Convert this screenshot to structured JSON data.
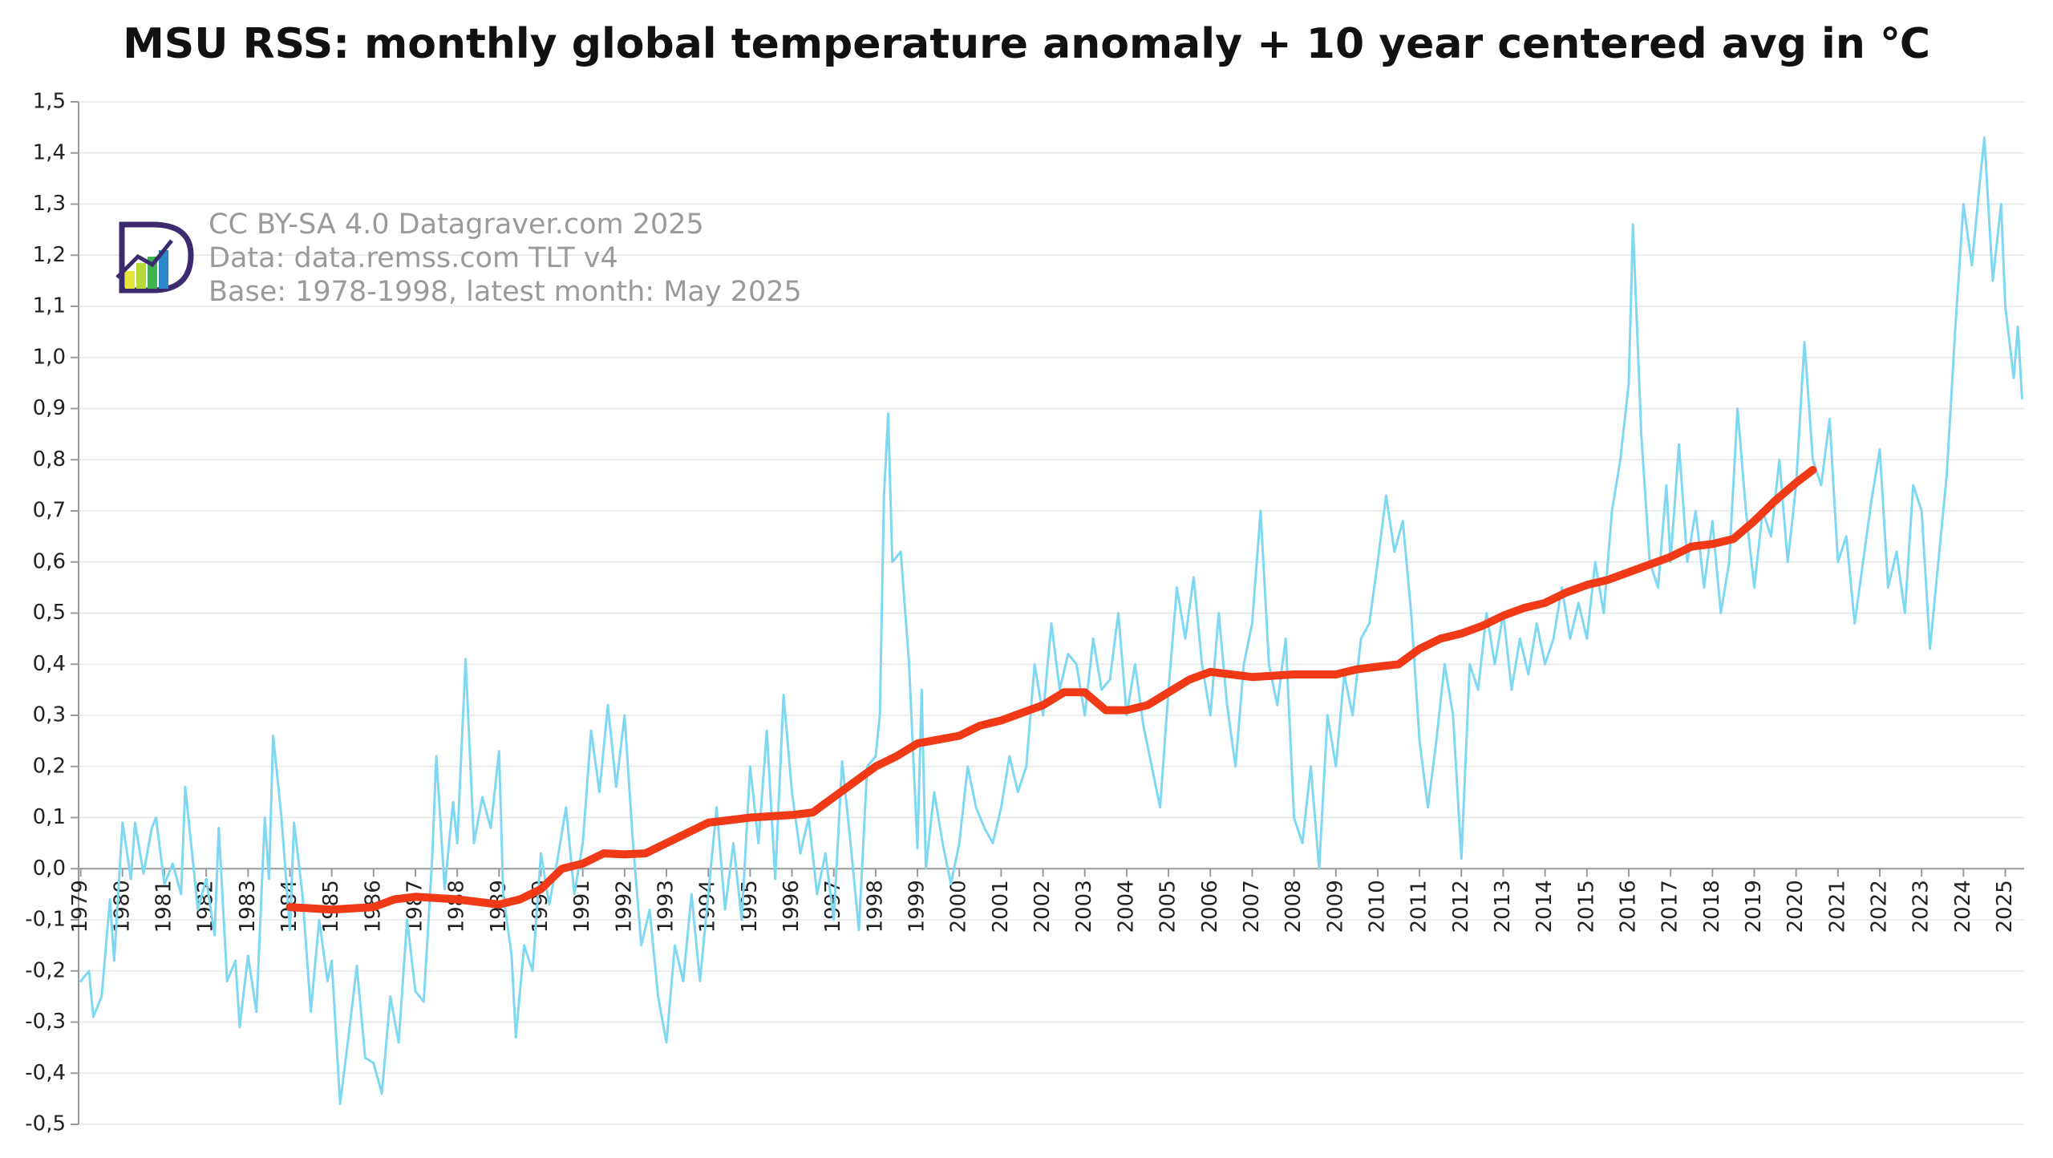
{
  "chart_data": {
    "type": "line",
    "title": "MSU RSS: monthly global temperature anomaly + 10 year centered avg in ℃",
    "annotations": [
      "CC BY-SA 4.0 Datagraver.com 2025",
      "Data: data.remss.com TLT v4",
      "Base: 1978-1998, latest month: May 2025"
    ],
    "xlim": [
      1978.95,
      2025.45
    ],
    "xticks": [
      1979,
      1980,
      1981,
      1982,
      1983,
      1984,
      1985,
      1986,
      1987,
      1988,
      1989,
      1990,
      1991,
      1992,
      1993,
      1994,
      1995,
      1996,
      1997,
      1998,
      1999,
      2000,
      2001,
      2002,
      2003,
      2004,
      2005,
      2006,
      2007,
      2008,
      2009,
      2010,
      2011,
      2012,
      2013,
      2014,
      2015,
      2016,
      2017,
      2018,
      2019,
      2020,
      2021,
      2022,
      2023,
      2024,
      2025
    ],
    "ylim": [
      -0.5,
      1.5
    ],
    "yticks": [
      {
        "value": -0.5,
        "label": "-0,5"
      },
      {
        "value": -0.4,
        "label": "-0,4"
      },
      {
        "value": -0.3,
        "label": "-0,3"
      },
      {
        "value": -0.2,
        "label": "-0,2"
      },
      {
        "value": -0.1,
        "label": "-0,1"
      },
      {
        "value": 0,
        "label": "0,0"
      },
      {
        "value": 0.1,
        "label": "0,1"
      },
      {
        "value": 0.2,
        "label": "0,2"
      },
      {
        "value": 0.3,
        "label": "0,3"
      },
      {
        "value": 0.4,
        "label": "0,4"
      },
      {
        "value": 0.5,
        "label": "0,5"
      },
      {
        "value": 0.6,
        "label": "0,6"
      },
      {
        "value": 0.7,
        "label": "0,7"
      },
      {
        "value": 0.8,
        "label": "0,8"
      },
      {
        "value": 0.9,
        "label": "0,9"
      },
      {
        "value": 1.0,
        "label": "1,0"
      },
      {
        "value": 1.1,
        "label": "1,1"
      },
      {
        "value": 1.2,
        "label": "1,2"
      },
      {
        "value": 1.3,
        "label": "1,3"
      },
      {
        "value": 1.4,
        "label": "1,4"
      },
      {
        "value": 1.5,
        "label": "1,5"
      }
    ],
    "grid": true,
    "series": [
      {
        "color": "#7fd8f2",
        "width": 3,
        "x": [
          1979.0,
          1979.2,
          1979.3,
          1979.5,
          1979.7,
          1979.8,
          1980.0,
          1980.2,
          1980.3,
          1980.5,
          1980.7,
          1980.8,
          1981.0,
          1981.2,
          1981.4,
          1981.5,
          1981.7,
          1981.8,
          1982.0,
          1982.2,
          1982.3,
          1982.5,
          1982.7,
          1982.8,
          1983.0,
          1983.2,
          1983.4,
          1983.5,
          1983.6,
          1983.8,
          1984.0,
          1984.1,
          1984.3,
          1984.5,
          1984.7,
          1984.9,
          1985.0,
          1985.2,
          1985.4,
          1985.6,
          1985.8,
          1986.0,
          1986.2,
          1986.4,
          1986.6,
          1986.8,
          1987.0,
          1987.2,
          1987.4,
          1987.5,
          1987.7,
          1987.9,
          1988.0,
          1988.2,
          1988.4,
          1988.6,
          1988.8,
          1989.0,
          1989.1,
          1989.3,
          1989.4,
          1989.6,
          1989.8,
          1990.0,
          1990.2,
          1990.4,
          1990.6,
          1990.8,
          1991.0,
          1991.2,
          1991.4,
          1991.6,
          1991.8,
          1992.0,
          1992.2,
          1992.4,
          1992.6,
          1992.8,
          1993.0,
          1993.2,
          1993.4,
          1993.6,
          1993.8,
          1994.0,
          1994.2,
          1994.4,
          1994.6,
          1994.8,
          1995.0,
          1995.2,
          1995.4,
          1995.6,
          1995.8,
          1996.0,
          1996.2,
          1996.4,
          1996.6,
          1996.8,
          1997.0,
          1997.2,
          1997.4,
          1997.6,
          1997.8,
          1998.0,
          1998.1,
          1998.2,
          1998.3,
          1998.4,
          1998.6,
          1998.8,
          1999.0,
          1999.1,
          1999.2,
          1999.4,
          1999.6,
          1999.8,
          2000.0,
          2000.2,
          2000.4,
          2000.6,
          2000.8,
          2001.0,
          2001.2,
          2001.4,
          2001.6,
          2001.8,
          2002.0,
          2002.2,
          2002.4,
          2002.6,
          2002.8,
          2003.0,
          2003.2,
          2003.4,
          2003.6,
          2003.8,
          2004.0,
          2004.2,
          2004.4,
          2004.6,
          2004.8,
          2005.0,
          2005.2,
          2005.4,
          2005.6,
          2005.8,
          2006.0,
          2006.2,
          2006.4,
          2006.6,
          2006.8,
          2007.0,
          2007.2,
          2007.4,
          2007.6,
          2007.8,
          2008.0,
          2008.2,
          2008.4,
          2008.6,
          2008.8,
          2009.0,
          2009.2,
          2009.4,
          2009.6,
          2009.8,
          2010.0,
          2010.2,
          2010.4,
          2010.6,
          2010.8,
          2011.0,
          2011.2,
          2011.4,
          2011.6,
          2011.8,
          2012.0,
          2012.2,
          2012.4,
          2012.6,
          2012.8,
          2013.0,
          2013.2,
          2013.4,
          2013.6,
          2013.8,
          2014.0,
          2014.2,
          2014.4,
          2014.6,
          2014.8,
          2015.0,
          2015.2,
          2015.4,
          2015.6,
          2015.8,
          2016.0,
          2016.1,
          2016.3,
          2016.5,
          2016.7,
          2016.9,
          2017.0,
          2017.2,
          2017.4,
          2017.6,
          2017.8,
          2018.0,
          2018.2,
          2018.4,
          2018.6,
          2018.8,
          2019.0,
          2019.2,
          2019.4,
          2019.6,
          2019.8,
          2020.0,
          2020.2,
          2020.4,
          2020.6,
          2020.8,
          2021.0,
          2021.2,
          2021.4,
          2021.6,
          2021.8,
          2022.0,
          2022.2,
          2022.4,
          2022.6,
          2022.8,
          2023.0,
          2023.2,
          2023.4,
          2023.6,
          2023.8,
          2024.0,
          2024.2,
          2024.4,
          2024.5,
          2024.7,
          2024.9,
          2025.0,
          2025.2,
          2025.3,
          2025.4
        ],
        "values": [
          -0.22,
          -0.2,
          -0.29,
          -0.25,
          -0.06,
          -0.18,
          0.09,
          -0.02,
          0.09,
          -0.01,
          0.08,
          0.1,
          -0.03,
          0.01,
          -0.05,
          0.16,
          0.0,
          -0.08,
          -0.02,
          -0.13,
          0.08,
          -0.22,
          -0.18,
          -0.31,
          -0.17,
          -0.28,
          0.1,
          -0.02,
          0.26,
          0.1,
          -0.12,
          0.09,
          -0.05,
          -0.28,
          -0.1,
          -0.22,
          -0.18,
          -0.46,
          -0.33,
          -0.19,
          -0.37,
          -0.38,
          -0.44,
          -0.25,
          -0.34,
          -0.1,
          -0.24,
          -0.26,
          0.02,
          0.22,
          -0.04,
          0.13,
          0.05,
          0.41,
          0.05,
          0.14,
          0.08,
          0.23,
          -0.05,
          -0.17,
          -0.33,
          -0.15,
          -0.2,
          0.03,
          -0.07,
          0.02,
          0.12,
          -0.05,
          0.05,
          0.27,
          0.15,
          0.32,
          0.16,
          0.3,
          0.05,
          -0.15,
          -0.08,
          -0.25,
          -0.34,
          -0.15,
          -0.22,
          -0.05,
          -0.22,
          -0.05,
          0.12,
          -0.08,
          0.05,
          -0.1,
          0.2,
          0.05,
          0.27,
          -0.02,
          0.34,
          0.15,
          0.03,
          0.1,
          -0.05,
          0.03,
          -0.1,
          0.21,
          0.05,
          -0.12,
          0.2,
          0.22,
          0.3,
          0.73,
          0.89,
          0.6,
          0.62,
          0.4,
          0.04,
          0.35,
          0.0,
          0.15,
          0.05,
          -0.03,
          0.05,
          0.2,
          0.12,
          0.08,
          0.05,
          0.12,
          0.22,
          0.15,
          0.2,
          0.4,
          0.3,
          0.48,
          0.35,
          0.42,
          0.4,
          0.3,
          0.45,
          0.35,
          0.37,
          0.5,
          0.3,
          0.4,
          0.28,
          0.2,
          0.12,
          0.35,
          0.55,
          0.45,
          0.57,
          0.4,
          0.3,
          0.5,
          0.32,
          0.2,
          0.4,
          0.48,
          0.7,
          0.4,
          0.32,
          0.45,
          0.1,
          0.05,
          0.2,
          0.0,
          0.3,
          0.2,
          0.38,
          0.3,
          0.45,
          0.48,
          0.6,
          0.73,
          0.62,
          0.68,
          0.5,
          0.25,
          0.12,
          0.25,
          0.4,
          0.3,
          0.02,
          0.4,
          0.35,
          0.5,
          0.4,
          0.5,
          0.35,
          0.45,
          0.38,
          0.48,
          0.4,
          0.45,
          0.55,
          0.45,
          0.52,
          0.45,
          0.6,
          0.5,
          0.7,
          0.8,
          0.95,
          1.26,
          0.85,
          0.6,
          0.55,
          0.75,
          0.6,
          0.83,
          0.6,
          0.7,
          0.55,
          0.68,
          0.5,
          0.6,
          0.9,
          0.7,
          0.55,
          0.7,
          0.65,
          0.8,
          0.6,
          0.75,
          1.03,
          0.8,
          0.75,
          0.88,
          0.6,
          0.65,
          0.48,
          0.6,
          0.72,
          0.82,
          0.55,
          0.62,
          0.5,
          0.75,
          0.7,
          0.43,
          0.6,
          0.77,
          1.05,
          1.3,
          1.18,
          1.35,
          1.43,
          1.15,
          1.3,
          1.1,
          0.96,
          1.06,
          0.92
        ]
      },
      {
        "color": "#f03a17",
        "width": 10,
        "x": [
          1984.0,
          1985.0,
          1986.0,
          1986.5,
          1987.0,
          1988.0,
          1989.0,
          1989.5,
          1990.0,
          1990.5,
          1991.0,
          1991.5,
          1992.0,
          1992.5,
          1993.0,
          1993.5,
          1994.0,
          1995.0,
          1996.0,
          1996.5,
          1997.0,
          1997.5,
          1998.0,
          1998.5,
          1999.0,
          2000.0,
          2000.5,
          2001.0,
          2002.0,
          2002.5,
          2003.0,
          2003.5,
          2004.0,
          2004.5,
          2005.0,
          2005.5,
          2006.0,
          2006.5,
          2007.0,
          2008.0,
          2009.0,
          2009.5,
          2010.0,
          2010.5,
          2011.0,
          2011.5,
          2012.0,
          2012.5,
          2013.0,
          2013.5,
          2014.0,
          2014.5,
          2015.0,
          2015.5,
          2016.0,
          2016.5,
          2017.0,
          2017.5,
          2018.0,
          2018.5,
          2019.0,
          2019.5,
          2020.0,
          2020.4
        ],
        "values": [
          -0.075,
          -0.08,
          -0.075,
          -0.06,
          -0.055,
          -0.06,
          -0.07,
          -0.06,
          -0.04,
          0.0,
          0.01,
          0.03,
          0.028,
          0.03,
          0.05,
          0.07,
          0.09,
          0.1,
          0.105,
          0.11,
          0.14,
          0.17,
          0.2,
          0.22,
          0.245,
          0.26,
          0.28,
          0.29,
          0.32,
          0.345,
          0.345,
          0.31,
          0.31,
          0.32,
          0.345,
          0.37,
          0.385,
          0.38,
          0.375,
          0.38,
          0.38,
          0.39,
          0.395,
          0.4,
          0.43,
          0.45,
          0.46,
          0.475,
          0.495,
          0.51,
          0.52,
          0.54,
          0.555,
          0.565,
          0.58,
          0.595,
          0.61,
          0.63,
          0.635,
          0.645,
          0.68,
          0.72,
          0.755,
          0.78
        ]
      }
    ]
  }
}
